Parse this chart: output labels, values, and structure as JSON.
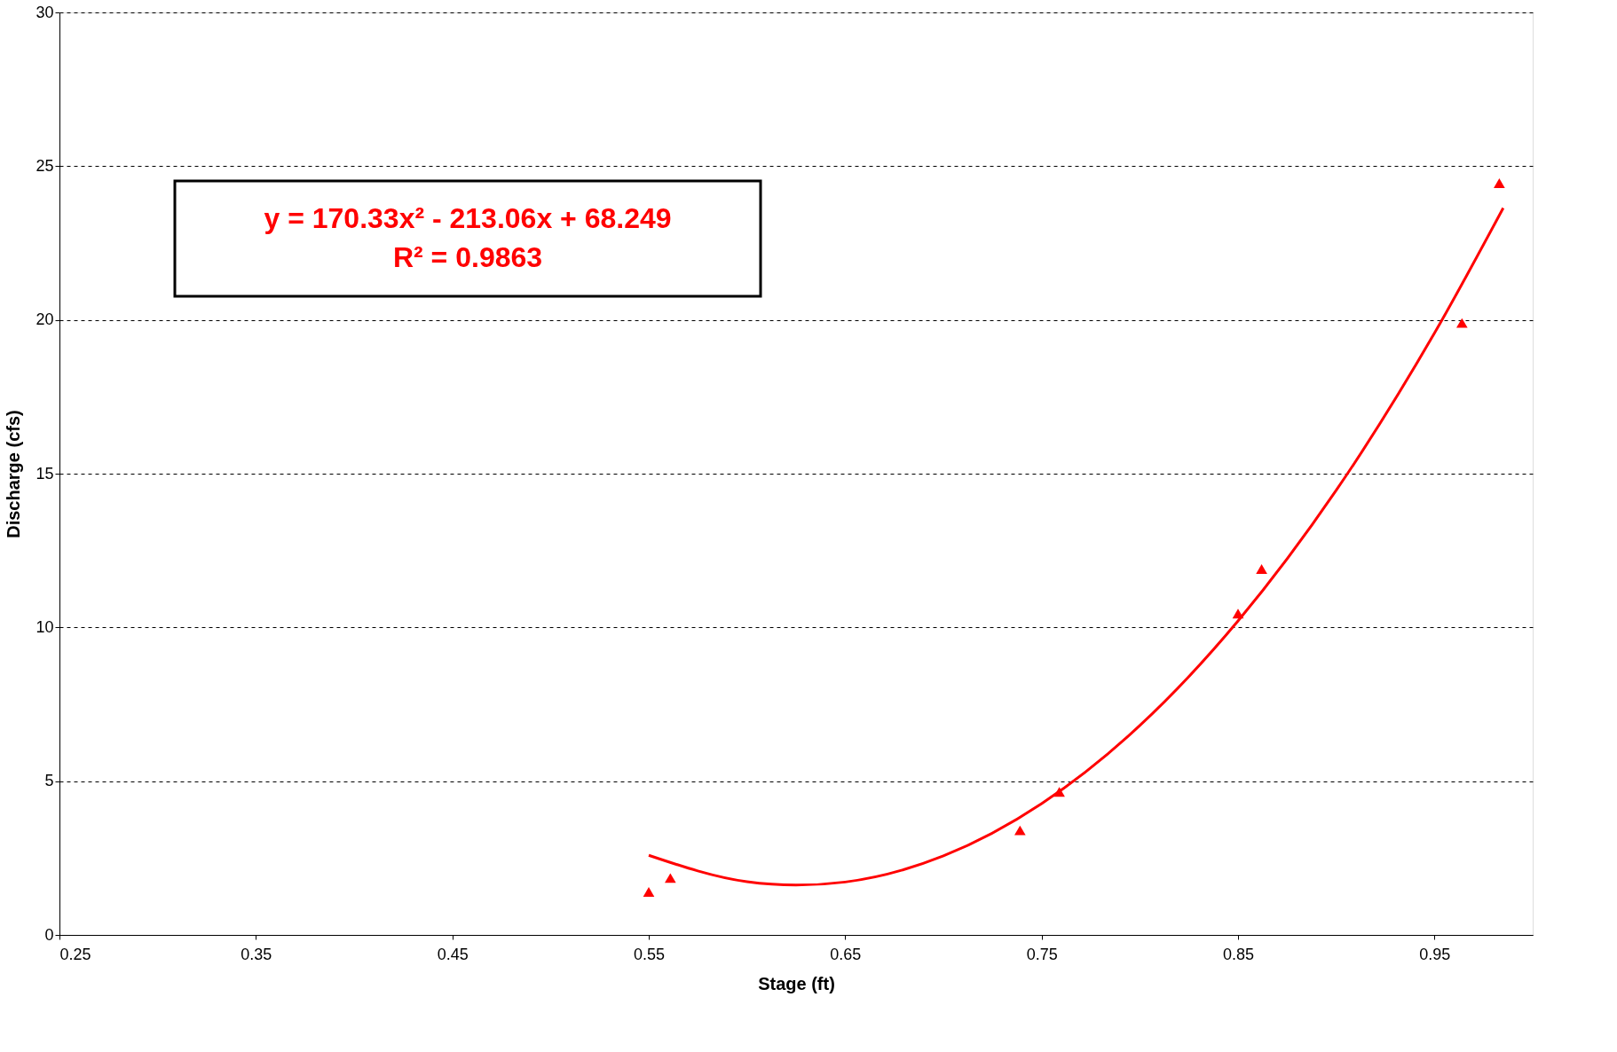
{
  "chart_data": {
    "type": "scatter",
    "xlabel": "Stage (ft)",
    "ylabel": "Discharge (cfs)",
    "xlim": [
      0.25,
      1.0
    ],
    "xticks": [
      0.25,
      0.35,
      0.45,
      0.55,
      0.65,
      0.75,
      0.85,
      0.95
    ],
    "ylim": [
      0,
      30
    ],
    "yticks": [
      0,
      5,
      10,
      15,
      20,
      25,
      30
    ],
    "grid": "y",
    "marker": "triangle",
    "annotations": [
      "y = 170.33x² - 213.06x + 68.249",
      "R² = 0.9863"
    ],
    "series": [
      {
        "color": "#ff0000",
        "x": [
          0.55,
          0.561,
          0.739,
          0.759,
          0.85,
          0.862,
          0.964,
          0.983
        ],
        "values": [
          1.4,
          1.85,
          3.4,
          4.65,
          10.45,
          11.9,
          19.9,
          24.45
        ]
      },
      {
        "type": "line",
        "color": "#ff0000",
        "marker": "none",
        "x": [
          0.55,
          0.6,
          0.625,
          0.65,
          0.7,
          0.75,
          0.8,
          0.85,
          0.9,
          0.95,
          0.985
        ],
        "values": [
          2.59,
          1.73,
          1.62,
          1.72,
          2.57,
          4.27,
          6.81,
          10.21,
          14.46,
          19.57,
          23.64
        ]
      }
    ]
  }
}
